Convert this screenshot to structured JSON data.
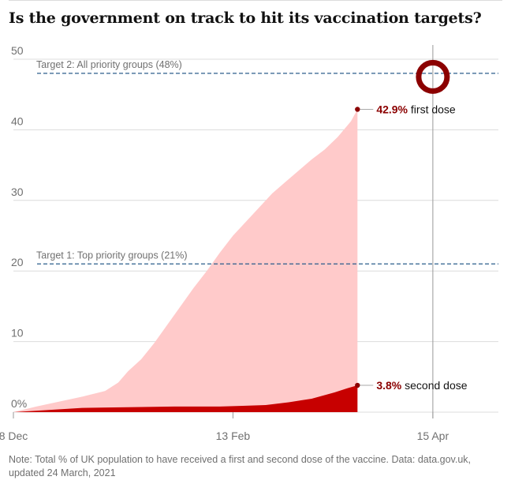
{
  "title": "Is the government on track to hit its vaccination targets?",
  "note": "Note: Total % of UK population to have received a first and second dose of the vaccine. Data: data.gov.uk, updated 24 March, 2021",
  "colors": {
    "first_dose_fill": "#ffcaca",
    "second_dose_fill": "#c70000",
    "annotation_dark": "#8b0000",
    "target_line": "#2b5d8c",
    "gridline": "#dcdcdc",
    "marker": "#8b0000"
  },
  "chart_data": {
    "type": "area",
    "y_tick_labels": [
      "0%",
      "10",
      "20",
      "30",
      "40",
      "50"
    ],
    "y_ticks": [
      0,
      10,
      20,
      30,
      40,
      50
    ],
    "ylim": [
      0,
      50
    ],
    "x_tick_labels": [
      "8 Dec",
      "13 Feb",
      "15 Apr"
    ],
    "x_ticks": [
      "2020-12-08",
      "2021-02-13",
      "2021-04-15"
    ],
    "xlim": [
      "2020-12-08",
      "2021-05-05"
    ],
    "grid": true,
    "targets": [
      {
        "label": "Target 1: Top priority groups (21%)",
        "value": 21
      },
      {
        "label": "Target 2: All priority groups (48%)",
        "value": 48
      }
    ],
    "target_date": "2021-04-15",
    "target_marker_value": 47.5,
    "series": [
      {
        "key": "first",
        "x": [
          "2020-12-08",
          "2020-12-15",
          "2020-12-22",
          "2020-12-29",
          "2021-01-05",
          "2021-01-09",
          "2021-01-12",
          "2021-01-16",
          "2021-01-20",
          "2021-01-24",
          "2021-01-28",
          "2021-02-01",
          "2021-02-05",
          "2021-02-09",
          "2021-02-13",
          "2021-02-17",
          "2021-02-21",
          "2021-02-25",
          "2021-03-01",
          "2021-03-05",
          "2021-03-09",
          "2021-03-13",
          "2021-03-17",
          "2021-03-21",
          "2021-03-23"
        ],
        "values": [
          0,
          0.8,
          1.5,
          2.2,
          3.0,
          4.2,
          5.8,
          7.5,
          9.8,
          12.4,
          15.0,
          17.6,
          20.0,
          22.6,
          25.0,
          27.0,
          29.0,
          31.0,
          32.6,
          34.2,
          35.8,
          37.2,
          39.0,
          41.2,
          42.9
        ]
      },
      {
        "key": "second",
        "x": [
          "2020-12-08",
          "2020-12-29",
          "2021-01-12",
          "2021-01-26",
          "2021-02-09",
          "2021-02-16",
          "2021-02-23",
          "2021-03-02",
          "2021-03-09",
          "2021-03-16",
          "2021-03-20",
          "2021-03-23"
        ],
        "values": [
          0,
          0.6,
          0.7,
          0.8,
          0.8,
          0.9,
          1.0,
          1.4,
          1.9,
          2.8,
          3.4,
          3.8
        ]
      }
    ],
    "annotations": [
      {
        "value_label": "42.9%",
        "text": "first dose",
        "x": "2021-03-23",
        "y": 42.9
      },
      {
        "value_label": "3.8%",
        "text": "second dose",
        "x": "2021-03-23",
        "y": 3.8
      }
    ]
  }
}
